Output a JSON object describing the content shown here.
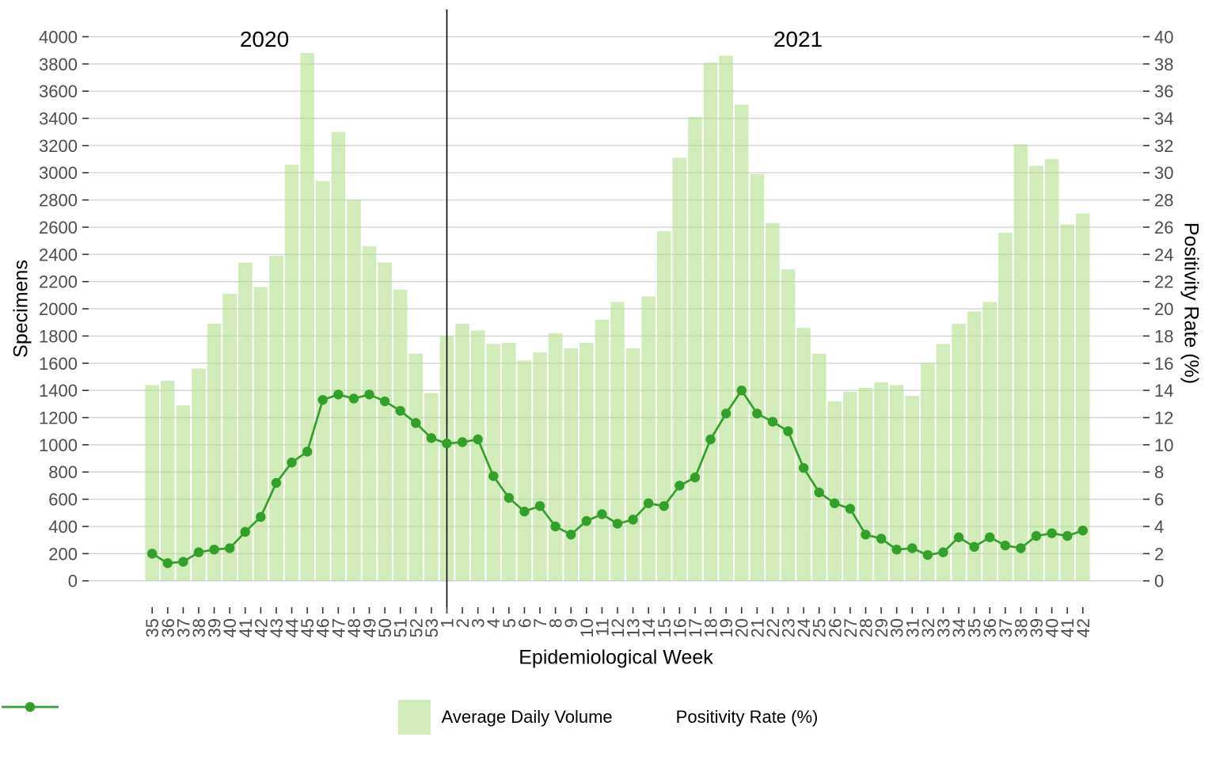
{
  "figure": {
    "left_axis": {
      "title": "Specimens",
      "ticks": [
        0,
        200,
        400,
        600,
        800,
        1000,
        1200,
        1400,
        1600,
        1800,
        2000,
        2200,
        2400,
        2600,
        2800,
        3000,
        3200,
        3400,
        3600,
        3800,
        4000
      ]
    },
    "right_axis": {
      "title": "Positivity Rate (%)",
      "ticks": [
        0,
        2,
        4,
        6,
        8,
        10,
        12,
        14,
        16,
        18,
        20,
        22,
        24,
        26,
        28,
        30,
        32,
        34,
        36,
        38,
        40
      ]
    },
    "x_axis": {
      "title": "Epidemiological Week"
    },
    "annotations": {
      "year_left": "2020",
      "year_right": "2021"
    },
    "legend": {
      "bar_label": "Average Daily Volume",
      "line_label": "Positivity Rate (%)"
    },
    "colors": {
      "bar_fill_rgba": "rgba(178,223,138,0.6)",
      "line": "#33a02c",
      "grid": "#d3d3d3",
      "tick_text": "#4d4d4d",
      "tick_mark": "#333333",
      "separator": "#000000"
    }
  },
  "chart_data": {
    "type": "bar+line dual-axis",
    "title": "",
    "xlabel": "Epidemiological Week",
    "ylabel_left": "Specimens",
    "ylabel_right": "Positivity Rate (%)",
    "left_ylim": [
      0,
      4000
    ],
    "right_ylim": [
      0,
      40
    ],
    "grid": "major horizontal only",
    "legend_position": "bottom center",
    "x_label_rotation_deg": 90,
    "year_separator_index": 19,
    "categories": [
      "35",
      "36",
      "37",
      "38",
      "39",
      "40",
      "41",
      "42",
      "43",
      "44",
      "45",
      "46",
      "47",
      "48",
      "49",
      "50",
      "51",
      "52",
      "53",
      "1",
      "2",
      "3",
      "4",
      "5",
      "6",
      "7",
      "8",
      "9",
      "10",
      "11",
      "12",
      "13",
      "14",
      "15",
      "16",
      "17",
      "18",
      "19",
      "20",
      "21",
      "22",
      "23",
      "24",
      "25",
      "26",
      "27",
      "28",
      "29",
      "30",
      "31",
      "32",
      "33",
      "34",
      "35",
      "36",
      "37",
      "38",
      "39",
      "40",
      "41",
      "42"
    ],
    "series": [
      {
        "name": "Average Daily Volume",
        "type": "bar",
        "axis": "left",
        "values": [
          1440,
          1470,
          1290,
          1560,
          1890,
          2110,
          2340,
          2160,
          2390,
          3060,
          3880,
          2940,
          3300,
          2800,
          2460,
          2340,
          2140,
          1670,
          1380,
          1800,
          1890,
          1840,
          1740,
          1750,
          1620,
          1680,
          1820,
          1710,
          1750,
          1920,
          2050,
          1710,
          2090,
          2570,
          3110,
          3410,
          3810,
          3860,
          3500,
          2990,
          2630,
          2290,
          1860,
          1670,
          1320,
          1390,
          1420,
          1460,
          1440,
          1360,
          1600,
          1740,
          1890,
          1980,
          2050,
          2560,
          3210,
          3050,
          3100,
          2620,
          2700
        ]
      },
      {
        "name": "Positivity Rate (%)",
        "type": "line",
        "axis": "right",
        "values": [
          2.0,
          1.3,
          1.4,
          2.1,
          2.3,
          2.4,
          3.6,
          4.7,
          7.2,
          8.7,
          9.5,
          13.3,
          13.7,
          13.4,
          13.7,
          13.2,
          12.5,
          11.6,
          10.5,
          10.1,
          10.2,
          10.4,
          7.7,
          6.1,
          5.1,
          5.5,
          4.0,
          3.4,
          4.4,
          4.9,
          4.2,
          4.5,
          5.7,
          5.5,
          7.0,
          7.6,
          10.4,
          12.3,
          14.0,
          12.3,
          11.7,
          11.0,
          8.3,
          6.5,
          5.7,
          5.3,
          3.4,
          3.1,
          2.3,
          2.4,
          1.9,
          2.1,
          3.2,
          2.5,
          3.2,
          2.6,
          2.4,
          3.3,
          3.5,
          3.3,
          3.7
        ]
      }
    ]
  }
}
